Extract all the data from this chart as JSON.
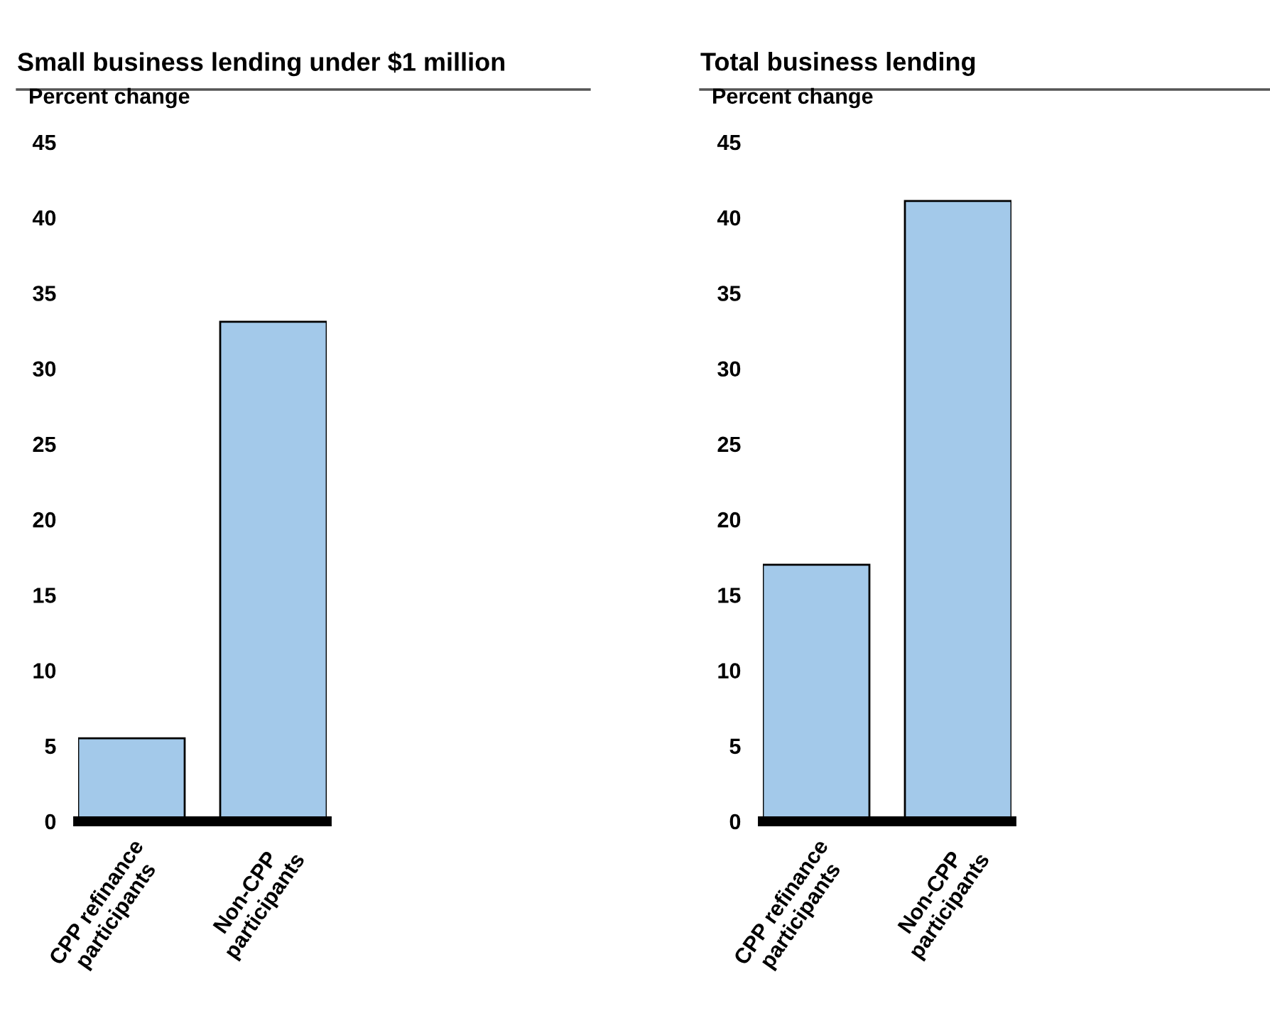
{
  "chart_data": [
    {
      "type": "bar",
      "title": "Small business lending under $1 million",
      "ylabel": "Percent change",
      "categories": [
        "CPP refinance\nparticipants",
        "Non-CPP\nparticipants"
      ],
      "values": [
        5.5,
        33.1
      ],
      "color": "#a3c9ea",
      "ylim": [
        0,
        45
      ],
      "yticks": [
        0,
        5,
        10,
        15,
        20,
        25,
        30,
        35,
        40,
        45
      ],
      "grid": false
    },
    {
      "type": "bar",
      "title": "Total business lending",
      "ylabel": "Percent change",
      "categories": [
        "CPP refinance\nparticipants",
        "Non-CPP\nparticipants"
      ],
      "values": [
        17.0,
        41.1
      ],
      "color": "#a3c9ea",
      "ylim": [
        0,
        45
      ],
      "yticks": [
        0,
        5,
        10,
        15,
        20,
        25,
        30,
        35,
        40,
        45
      ],
      "grid": false
    }
  ]
}
